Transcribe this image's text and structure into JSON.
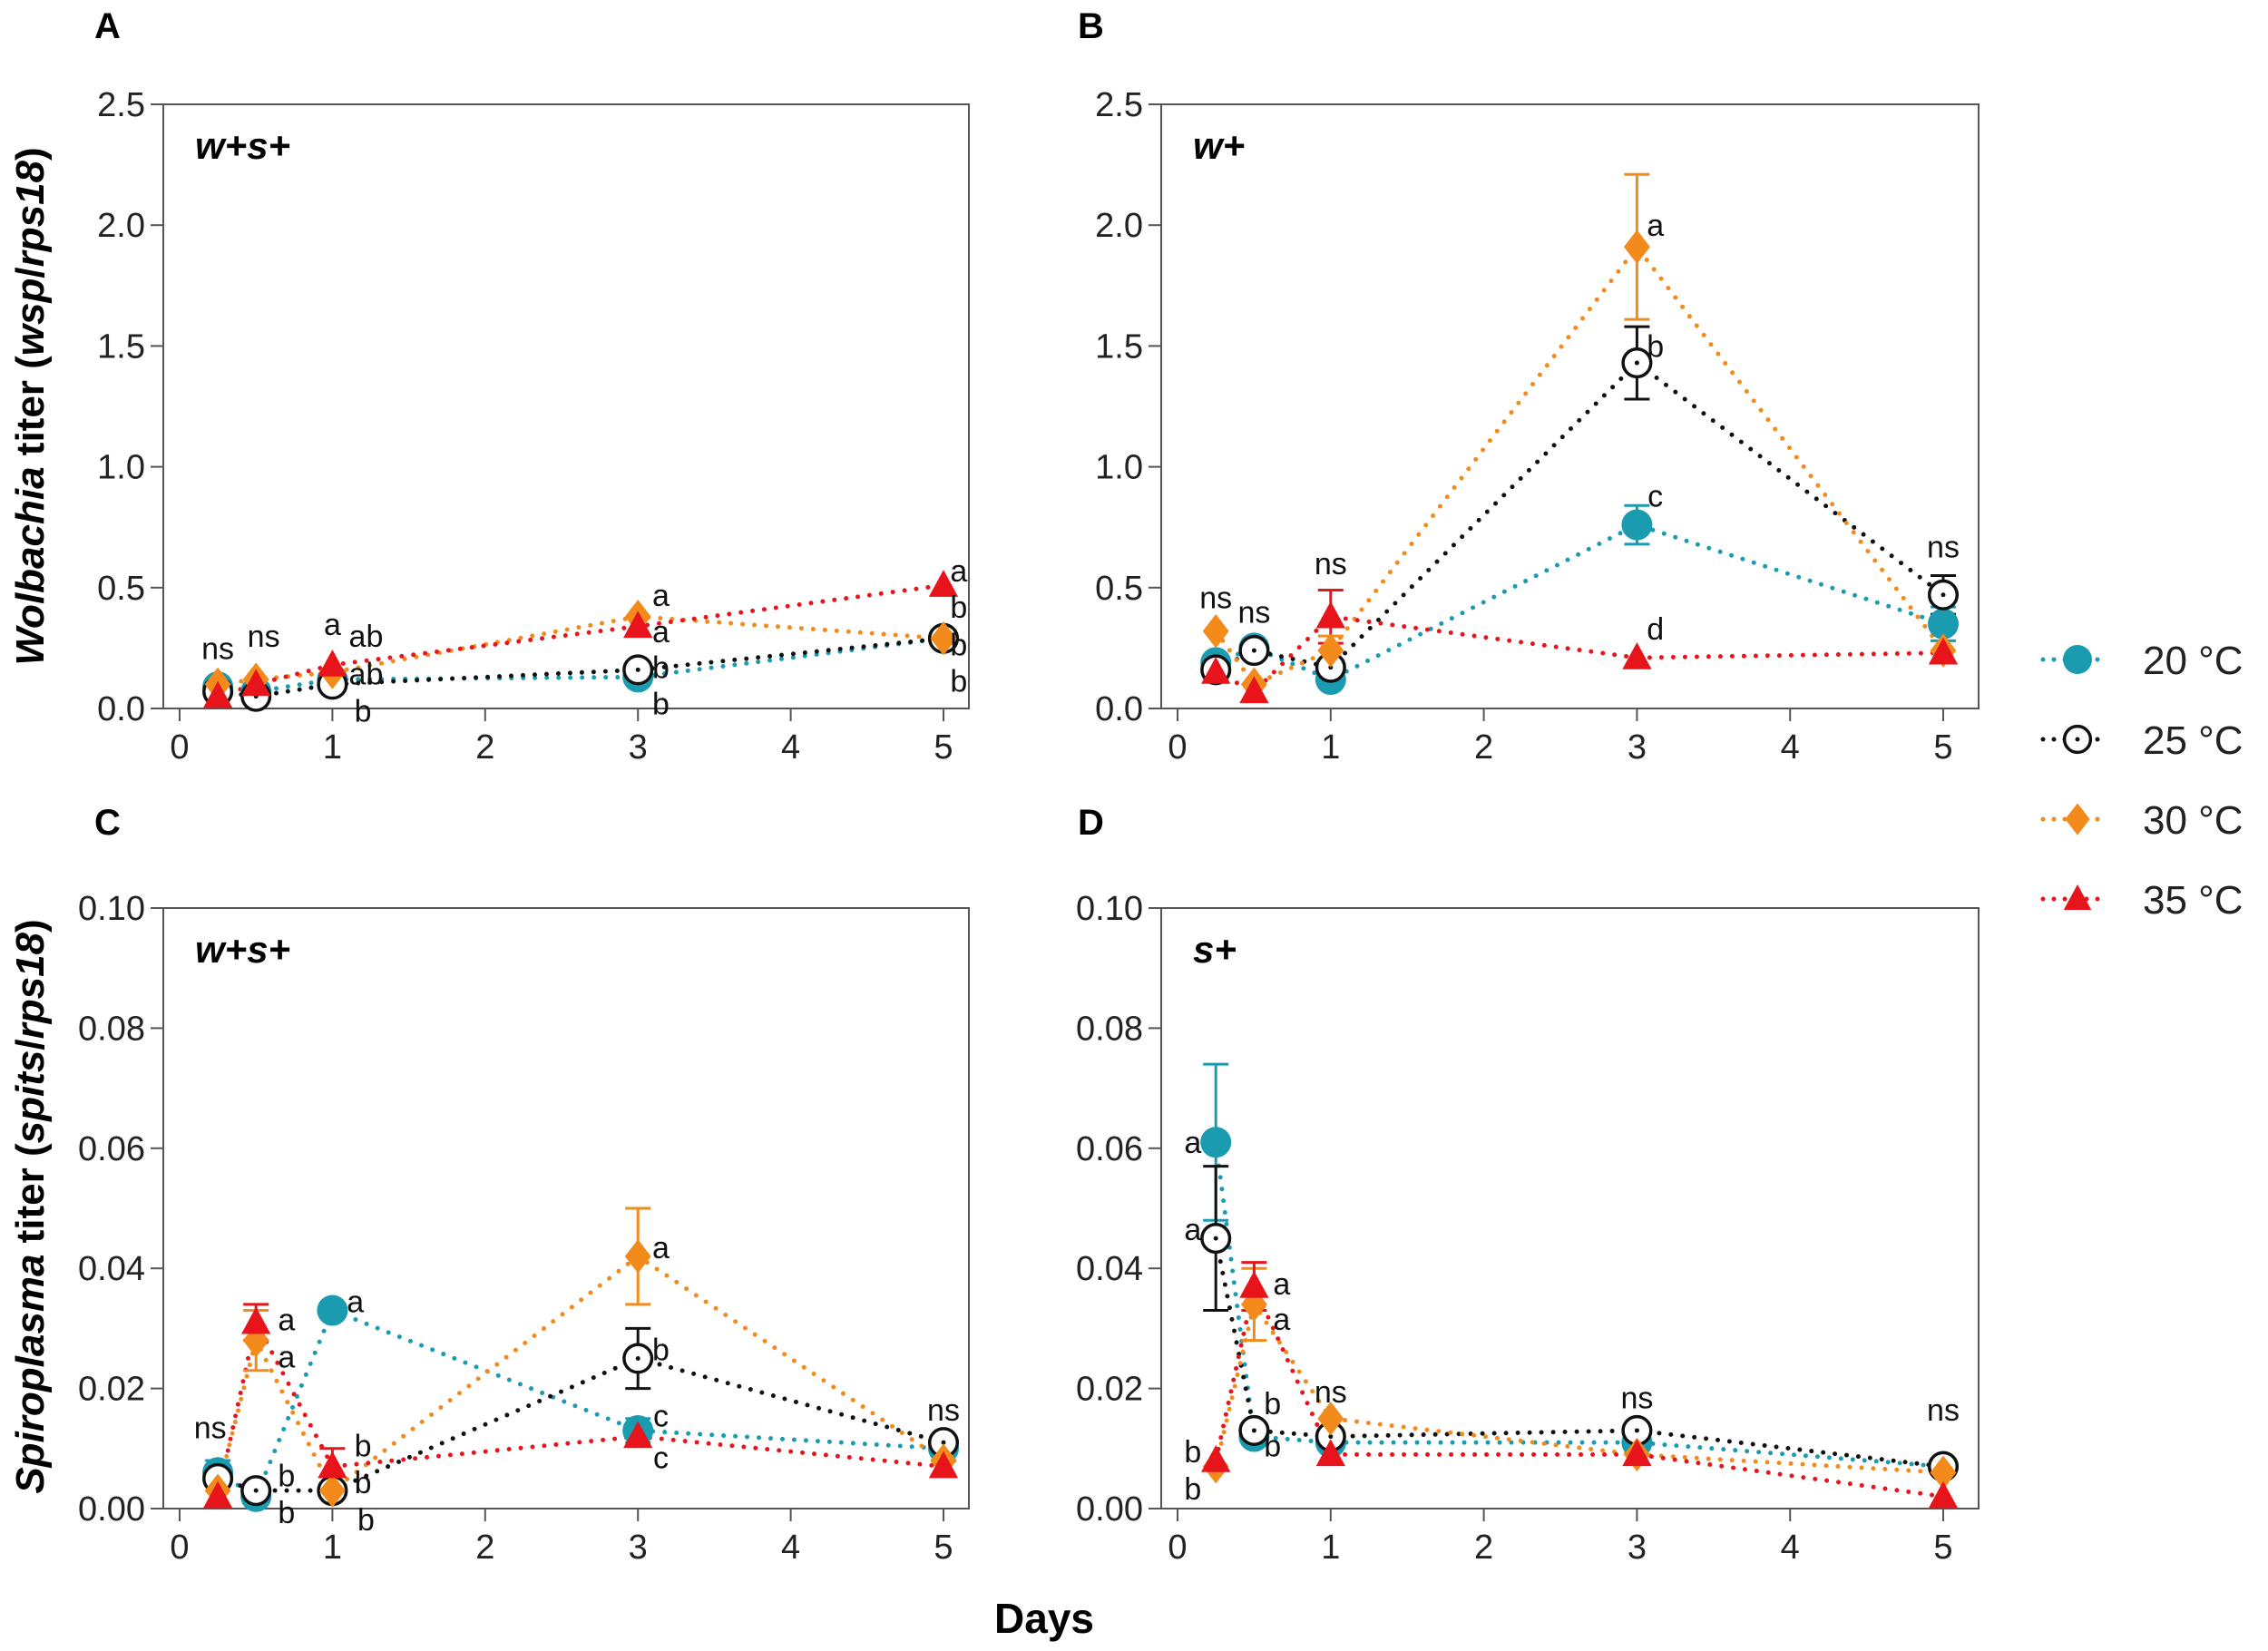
{
  "colors": {
    "20": "#1a9bb0",
    "25": "#111111",
    "30": "#f28a1c",
    "35": "#e8141c"
  },
  "legend": [
    {
      "label": "20 °C",
      "marker": "filled-circle",
      "color": "#1a9bb0"
    },
    {
      "label": "25 °C",
      "marker": "open-circle-dot",
      "color": "#111111"
    },
    {
      "label": "30 °C",
      "marker": "diamond",
      "color": "#f28a1c"
    },
    {
      "label": "35 °C",
      "marker": "triangle",
      "color": "#e8141c"
    }
  ],
  "y_labels": {
    "top": {
      "italic1": "Wolbachia",
      "plain1": " titer (",
      "italic2": "wsp",
      "plain2": "/",
      "italic3": "rps18",
      "plain3": ")"
    },
    "bottom": {
      "italic1": "Spiroplasma",
      "plain1": " titer (",
      "italic2": "spits",
      "plain2": "/",
      "italic3": "rps18",
      "plain3": ")"
    }
  },
  "x_label": "Days",
  "chart_data": [
    {
      "panel": "A",
      "inset": "w+s+",
      "type": "line",
      "xlim": [
        0,
        5.3
      ],
      "ylim": [
        0,
        2.5
      ],
      "xticks": [
        "0",
        "1",
        "2",
        "3",
        "4",
        "5"
      ],
      "yticks": [
        "0.0",
        "0.5",
        "1.0",
        "1.5",
        "2.0",
        "2.5"
      ],
      "x": [
        0.25,
        0.5,
        1,
        3,
        5
      ],
      "series": [
        {
          "name": "20 °C",
          "values": [
            0.09,
            0.07,
            0.12,
            0.13,
            0.29
          ],
          "err": [
            0.02,
            0.01,
            0.02,
            0.02,
            0.02
          ]
        },
        {
          "name": "25 °C",
          "values": [
            0.07,
            0.05,
            0.1,
            0.16,
            0.29
          ],
          "err": [
            0.01,
            0.01,
            0.02,
            0.02,
            0.02
          ]
        },
        {
          "name": "30 °C",
          "values": [
            0.1,
            0.12,
            0.15,
            0.38,
            0.29
          ],
          "err": [
            0.02,
            0.02,
            0.02,
            0.02,
            0.02
          ]
        },
        {
          "name": "35 °C",
          "values": [
            0.05,
            0.1,
            0.18,
            0.34,
            0.51
          ],
          "err": [
            0.01,
            0.02,
            0.02,
            0.02,
            0.02
          ]
        }
      ],
      "annotations": [
        {
          "text": "ns",
          "x": 0.25,
          "y": 0.25
        },
        {
          "text": "ns",
          "x": 0.55,
          "y": 0.3
        },
        {
          "text": "a",
          "x": 1.0,
          "y": 0.35
        },
        {
          "text": "ab",
          "x": 1.22,
          "y": 0.3
        },
        {
          "text": "ab",
          "x": 1.22,
          "y": 0.16
        },
        {
          "text": "b",
          "x": 1.2,
          "y": 0.05
        },
        {
          "text": "a",
          "x": 3.15,
          "y": 0.47
        },
        {
          "text": "a",
          "x": 3.15,
          "y": 0.32
        },
        {
          "text": "b",
          "x": 3.15,
          "y": 0.2
        },
        {
          "text": "b",
          "x": 3.15,
          "y": 0.05
        },
        {
          "text": "a",
          "x": 5.1,
          "y": 0.57
        },
        {
          "text": "b",
          "x": 5.1,
          "y": 0.42
        },
        {
          "text": "b",
          "x": 5.1,
          "y": 0.28
        },
        {
          "text": "b",
          "x": 5.1,
          "y": 0.13
        }
      ]
    },
    {
      "panel": "B",
      "inset": "w+",
      "type": "line",
      "xlim": [
        0,
        5.3
      ],
      "ylim": [
        0,
        2.5
      ],
      "xticks": [
        "0",
        "1",
        "2",
        "3",
        "4",
        "5"
      ],
      "yticks": [
        "0.0",
        "0.5",
        "1.0",
        "1.5",
        "2.0",
        "2.5"
      ],
      "x": [
        0.25,
        0.5,
        1,
        3,
        5
      ],
      "series": [
        {
          "name": "20 °C",
          "values": [
            0.19,
            0.25,
            0.12,
            0.76,
            0.35
          ],
          "err": [
            0.02,
            0.02,
            0.02,
            0.08,
            0.07
          ]
        },
        {
          "name": "25 °C",
          "values": [
            0.16,
            0.24,
            0.17,
            1.43,
            0.47
          ],
          "err": [
            0.02,
            0.02,
            0.02,
            0.15,
            0.08
          ]
        },
        {
          "name": "30 °C",
          "values": [
            0.32,
            0.1,
            0.24,
            1.91,
            0.24
          ],
          "err": [
            0.02,
            0.02,
            0.06,
            0.3,
            0.02
          ]
        },
        {
          "name": "35 °C",
          "values": [
            0.15,
            0.07,
            0.38,
            0.21,
            0.23
          ],
          "err": [
            0.02,
            0.02,
            0.11,
            0.02,
            0.02
          ]
        }
      ],
      "annotations": [
        {
          "text": "ns",
          "x": 0.25,
          "y": 0.46
        },
        {
          "text": "ns",
          "x": 0.5,
          "y": 0.4
        },
        {
          "text": "ns",
          "x": 1.0,
          "y": 0.6
        },
        {
          "text": "a",
          "x": 3.12,
          "y": 2.0
        },
        {
          "text": "b",
          "x": 3.12,
          "y": 1.5
        },
        {
          "text": "c",
          "x": 3.12,
          "y": 0.88
        },
        {
          "text": "d",
          "x": 3.12,
          "y": 0.33
        },
        {
          "text": "ns",
          "x": 5.0,
          "y": 0.67
        }
      ]
    },
    {
      "panel": "C",
      "inset": "w+s+",
      "type": "line",
      "xlim": [
        0,
        5.3
      ],
      "ylim": [
        0,
        0.1
      ],
      "xticks": [
        "0",
        "1",
        "2",
        "3",
        "4",
        "5"
      ],
      "yticks": [
        "0.00",
        "0.02",
        "0.04",
        "0.06",
        "0.08",
        "0.10"
      ],
      "x": [
        0.25,
        0.5,
        1,
        3,
        5
      ],
      "series": [
        {
          "name": "20 °C",
          "values": [
            0.006,
            0.002,
            0.033,
            0.013,
            0.01
          ],
          "err": [
            0.002,
            0.001,
            0.001,
            0.002,
            0.002
          ]
        },
        {
          "name": "25 °C",
          "values": [
            0.005,
            0.003,
            0.003,
            0.025,
            0.011
          ],
          "err": [
            0.001,
            0.001,
            0.001,
            0.005,
            0.001
          ]
        },
        {
          "name": "30 °C",
          "values": [
            0.003,
            0.028,
            0.003,
            0.042,
            0.008
          ],
          "err": [
            0.001,
            0.005,
            0.001,
            0.008,
            0.001
          ]
        },
        {
          "name": "35 °C",
          "values": [
            0.002,
            0.031,
            0.007,
            0.012,
            0.007
          ],
          "err": [
            0.001,
            0.003,
            0.003,
            0.001,
            0.001
          ]
        }
      ],
      "annotations": [
        {
          "text": "ns",
          "x": 0.2,
          "y": 0.0135
        },
        {
          "text": "a",
          "x": 0.7,
          "y": 0.0315
        },
        {
          "text": "a",
          "x": 0.7,
          "y": 0.0265
        },
        {
          "text": "b",
          "x": 0.7,
          "y": 0.0055
        },
        {
          "text": "b",
          "x": 0.7,
          "y": 0.0012
        },
        {
          "text": "a",
          "x": 1.15,
          "y": 0.0345
        },
        {
          "text": "b",
          "x": 1.2,
          "y": 0.0105
        },
        {
          "text": "b",
          "x": 1.2,
          "y": 0.0062
        },
        {
          "text": "b",
          "x": 1.22,
          "y": 0.0012
        },
        {
          "text": "a",
          "x": 3.15,
          "y": 0.0435
        },
        {
          "text": "b",
          "x": 3.15,
          "y": 0.0265
        },
        {
          "text": "c",
          "x": 3.15,
          "y": 0.0155
        },
        {
          "text": "c",
          "x": 3.15,
          "y": 0.0085
        },
        {
          "text": "ns",
          "x": 5.0,
          "y": 0.0165
        }
      ]
    },
    {
      "panel": "D",
      "inset": "s+",
      "type": "line",
      "xlim": [
        0,
        5.3
      ],
      "ylim": [
        0,
        0.1
      ],
      "xticks": [
        "0",
        "1",
        "2",
        "3",
        "4",
        "5"
      ],
      "yticks": [
        "0.00",
        "0.02",
        "0.04",
        "0.06",
        "0.08",
        "0.10"
      ],
      "x": [
        0.25,
        0.5,
        1,
        3,
        5
      ],
      "series": [
        {
          "name": "20 °C",
          "values": [
            0.061,
            0.012,
            0.011,
            0.011,
            0.007
          ],
          "err": [
            0.013,
            0.001,
            0.001,
            0.001,
            0.001
          ]
        },
        {
          "name": "25 °C",
          "values": [
            0.045,
            0.013,
            0.012,
            0.013,
            0.007
          ],
          "err": [
            0.012,
            0.001,
            0.001,
            0.001,
            0.001
          ]
        },
        {
          "name": "30 °C",
          "values": [
            0.007,
            0.034,
            0.015,
            0.009,
            0.006
          ],
          "err": [
            0.001,
            0.006,
            0.001,
            0.001,
            0.001
          ]
        },
        {
          "name": "35 °C",
          "values": [
            0.008,
            0.037,
            0.009,
            0.009,
            0.002
          ],
          "err": [
            0.001,
            0.004,
            0.001,
            0.001,
            0.001
          ]
        }
      ],
      "annotations": [
        {
          "text": "a",
          "x": 0.1,
          "y": 0.061
        },
        {
          "text": "a",
          "x": 0.1,
          "y": 0.0465
        },
        {
          "text": "b",
          "x": 0.1,
          "y": 0.0095
        },
        {
          "text": "b",
          "x": 0.1,
          "y": 0.0045
        },
        {
          "text": "a",
          "x": 0.68,
          "y": 0.0375
        },
        {
          "text": "a",
          "x": 0.68,
          "y": 0.034
        },
        {
          "text": "b",
          "x": 0.62,
          "y": 0.0175
        },
        {
          "text": "b",
          "x": 0.62,
          "y": 0.0105
        },
        {
          "text": "ns",
          "x": 1.0,
          "y": 0.0195
        },
        {
          "text": "ns",
          "x": 3.0,
          "y": 0.0185
        },
        {
          "text": "ns",
          "x": 5.0,
          "y": 0.0165
        }
      ]
    }
  ]
}
